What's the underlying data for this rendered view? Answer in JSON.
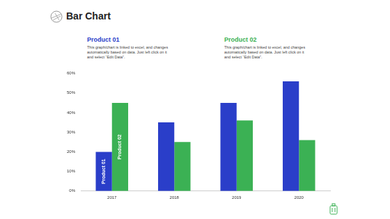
{
  "chart_data": {
    "type": "bar",
    "title": "Bar Chart",
    "annotations": [
      {
        "heading": "Product 01",
        "text": "This graph/chart is linked to excel, and changes automatically based on data. Just left click on it and select “Edit Data”."
      },
      {
        "heading": "Product 02",
        "text": "This graph/chart is linked to excel, and changes automatically based on data. Just left click on it and select “Edit Data”."
      }
    ],
    "categories": [
      "2017",
      "2018",
      "2019",
      "2020"
    ],
    "series": [
      {
        "name": "Product 01",
        "color": "#2a3ec9",
        "values": [
          20,
          35,
          45,
          56
        ]
      },
      {
        "name": "Product 02",
        "color": "#3bb154",
        "values": [
          45,
          25,
          36,
          26
        ]
      }
    ],
    "ylim": [
      0,
      60
    ],
    "yticks": [
      {
        "value": 0,
        "label": "0%"
      },
      {
        "value": 10,
        "label": "10%"
      },
      {
        "value": 20,
        "label": "20%"
      },
      {
        "value": 30,
        "label": "30%"
      },
      {
        "value": 40,
        "label": "40%"
      },
      {
        "value": 50,
        "label": "50%"
      },
      {
        "value": 60,
        "label": "60%"
      }
    ],
    "grid": false
  }
}
